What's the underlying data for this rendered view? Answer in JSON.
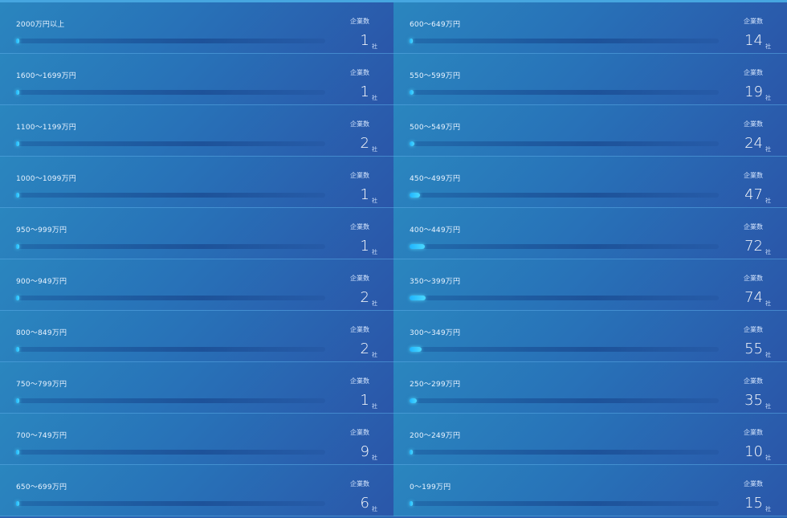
{
  "caption": "企業数",
  "unit": "社",
  "max_count": 74,
  "left": [
    {
      "label": "2000万円以上",
      "count": "1"
    },
    {
      "label": "1600〜1699万円",
      "count": "1"
    },
    {
      "label": "1100〜1199万円",
      "count": "2"
    },
    {
      "label": "1000〜1099万円",
      "count": "1"
    },
    {
      "label": "950〜999万円",
      "count": "1"
    },
    {
      "label": "900〜949万円",
      "count": "2"
    },
    {
      "label": "800〜849万円",
      "count": "2"
    },
    {
      "label": "750〜799万円",
      "count": "1"
    },
    {
      "label": "700〜749万円",
      "count": "9"
    },
    {
      "label": "650〜699万円",
      "count": "6"
    }
  ],
  "right": [
    {
      "label": "600〜649万円",
      "count": "14"
    },
    {
      "label": "550〜599万円",
      "count": "19"
    },
    {
      "label": "500〜549万円",
      "count": "24"
    },
    {
      "label": "450〜499万円",
      "count": "47"
    },
    {
      "label": "400〜449万円",
      "count": "72"
    },
    {
      "label": "350〜399万円",
      "count": "74"
    },
    {
      "label": "300〜349万円",
      "count": "55"
    },
    {
      "label": "250〜299万円",
      "count": "35"
    },
    {
      "label": "200〜249万円",
      "count": "10"
    },
    {
      "label": "0〜199万円",
      "count": "15"
    }
  ]
}
